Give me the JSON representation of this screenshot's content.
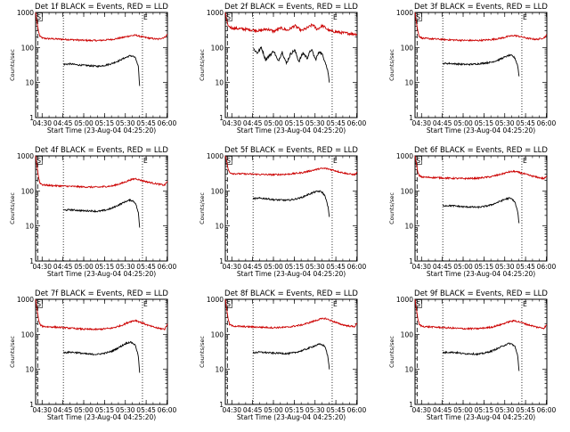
{
  "chart_data": [
    {
      "type": "line",
      "title": "Det 1f BLACK = Events, RED = LLD",
      "xlabel": "Start Time (23-Aug-04 04:25:20)",
      "ylabel": "Counts/sec",
      "x_tick_labels": [
        "04:30",
        "04:45",
        "05:00",
        "05:15",
        "05:30",
        "05:45",
        "06:00"
      ],
      "y_tick_labels": [
        "1",
        "10",
        "100",
        "1000"
      ],
      "y_scale": "log",
      "ylim": [
        1,
        1000
      ],
      "xlim_minutes": [
        0,
        95
      ],
      "dotted_markers_min": [
        20,
        77
      ],
      "marker_labels": [
        "S",
        "E"
      ],
      "series": [
        {
          "name": "RED = LLD",
          "color": "#cc0000",
          "level": "mid",
          "values_x_min": [
            0,
            1,
            2,
            3,
            5,
            8,
            15,
            25,
            35,
            45,
            55,
            62,
            68,
            72,
            77,
            82,
            88,
            93,
            95
          ],
          "values_y": [
            1000,
            520,
            300,
            210,
            185,
            180,
            175,
            168,
            160,
            158,
            170,
            190,
            215,
            225,
            200,
            185,
            172,
            195,
            240
          ]
        },
        {
          "name": "BLACK = Events",
          "color": "#000000",
          "level": "mid",
          "values_x_min": [
            20,
            25,
            30,
            35,
            40,
            45,
            50,
            55,
            60,
            65,
            68,
            70,
            72,
            74,
            75
          ],
          "values_y": [
            33,
            34,
            32,
            31,
            30,
            29,
            31,
            35,
            42,
            52,
            58,
            57,
            50,
            28,
            8
          ]
        }
      ]
    },
    {
      "type": "line",
      "title": "Det 2f BLACK = Events, RED = LLD",
      "xlabel": "Start Time (23-Aug-04 04:25:20)",
      "ylabel": "Counts/sec",
      "x_tick_labels": [
        "04:30",
        "04:45",
        "05:00",
        "05:15",
        "05:30",
        "05:45",
        "06:00"
      ],
      "y_tick_labels": [
        "1",
        "10",
        "100",
        "1000"
      ],
      "y_scale": "log",
      "ylim": [
        1,
        1000
      ],
      "xlim_minutes": [
        0,
        95
      ],
      "dotted_markers_min": [
        20,
        77
      ],
      "marker_labels": [
        "S",
        "E"
      ],
      "series": [
        {
          "name": "RED = LLD",
          "color": "#cc0000",
          "level": "noisy-high",
          "values_x_min": [
            0,
            1,
            2,
            3,
            5,
            8,
            15,
            25,
            30,
            35,
            40,
            45,
            50,
            55,
            60,
            63,
            66,
            70,
            75,
            80,
            85,
            90,
            95
          ],
          "values_y": [
            1000,
            600,
            420,
            390,
            360,
            350,
            330,
            300,
            340,
            290,
            360,
            310,
            420,
            300,
            380,
            450,
            330,
            420,
            300,
            280,
            260,
            250,
            240
          ]
        },
        {
          "name": "BLACK = Events",
          "color": "#000000",
          "level": "noisy",
          "values_x_min": [
            20,
            23,
            26,
            29,
            32,
            35,
            38,
            41,
            44,
            47,
            50,
            53,
            56,
            59,
            62,
            65,
            68,
            70,
            72,
            74,
            75
          ],
          "values_y": [
            95,
            70,
            100,
            45,
            60,
            80,
            40,
            75,
            35,
            65,
            85,
            40,
            70,
            50,
            90,
            45,
            80,
            60,
            40,
            20,
            10
          ]
        }
      ]
    },
    {
      "type": "line",
      "title": "Det 3f BLACK = Events, RED = LLD",
      "xlabel": "Start Time (23-Aug-04 04:25:20)",
      "ylabel": "Counts/sec",
      "x_tick_labels": [
        "04:30",
        "04:45",
        "05:00",
        "05:15",
        "05:30",
        "05:45",
        "06:00"
      ],
      "y_tick_labels": [
        "1",
        "10",
        "100",
        "1000"
      ],
      "y_scale": "log",
      "ylim": [
        1,
        1000
      ],
      "xlim_minutes": [
        0,
        95
      ],
      "dotted_markers_min": [
        20,
        77
      ],
      "marker_labels": [
        "S",
        "E"
      ],
      "series": [
        {
          "name": "RED = LLD",
          "color": "#cc0000",
          "level": "mid",
          "values_x_min": [
            0,
            1,
            2,
            3,
            5,
            8,
            15,
            25,
            35,
            45,
            55,
            62,
            68,
            72,
            77,
            82,
            88,
            93,
            95
          ],
          "values_y": [
            1000,
            520,
            300,
            210,
            185,
            180,
            175,
            165,
            160,
            158,
            168,
            185,
            210,
            220,
            200,
            180,
            170,
            190,
            230
          ]
        },
        {
          "name": "BLACK = Events",
          "color": "#000000",
          "level": "mid",
          "values_x_min": [
            20,
            25,
            30,
            35,
            40,
            45,
            50,
            55,
            60,
            65,
            68,
            70,
            72,
            74,
            75
          ],
          "values_y": [
            35,
            35,
            34,
            33,
            33,
            34,
            36,
            38,
            44,
            54,
            60,
            58,
            50,
            30,
            15
          ]
        }
      ]
    },
    {
      "type": "line",
      "title": "Det 4f BLACK = Events, RED = LLD",
      "xlabel": "Start Time (23-Aug-04 04:25:20)",
      "ylabel": "Counts/sec",
      "x_tick_labels": [
        "04:30",
        "04:45",
        "05:00",
        "05:15",
        "05:30",
        "05:45",
        "06:00"
      ],
      "y_tick_labels": [
        "1",
        "10",
        "100",
        "1000"
      ],
      "y_scale": "log",
      "ylim": [
        1,
        1000
      ],
      "xlim_minutes": [
        0,
        95
      ],
      "dotted_markers_min": [
        20,
        77
      ],
      "marker_labels": [
        "S",
        "E"
      ],
      "series": [
        {
          "name": "RED = LLD",
          "color": "#cc0000",
          "level": "mid",
          "values_x_min": [
            0,
            1,
            2,
            3,
            5,
            8,
            15,
            25,
            35,
            45,
            55,
            62,
            68,
            72,
            77,
            82,
            88,
            93,
            95
          ],
          "values_y": [
            1000,
            500,
            260,
            170,
            150,
            145,
            140,
            135,
            130,
            128,
            138,
            165,
            205,
            225,
            195,
            175,
            158,
            145,
            190
          ]
        },
        {
          "name": "BLACK = Events",
          "color": "#000000",
          "level": "mid",
          "values_x_min": [
            20,
            25,
            30,
            35,
            40,
            45,
            50,
            55,
            60,
            65,
            68,
            70,
            72,
            74,
            75
          ],
          "values_y": [
            28,
            29,
            28,
            27,
            27,
            26,
            28,
            32,
            40,
            50,
            55,
            52,
            45,
            24,
            9
          ]
        }
      ]
    },
    {
      "type": "line",
      "title": "Det 5f BLACK = Events, RED = LLD",
      "xlabel": "Start Time (23-Aug-04 04:25:20)",
      "ylabel": "Counts/sec",
      "x_tick_labels": [
        "04:30",
        "04:45",
        "05:00",
        "05:15",
        "05:30",
        "05:45",
        "06:00"
      ],
      "y_tick_labels": [
        "1",
        "10",
        "100",
        "1000"
      ],
      "y_scale": "log",
      "ylim": [
        1,
        1000
      ],
      "xlim_minutes": [
        0,
        95
      ],
      "dotted_markers_min": [
        20,
        77
      ],
      "marker_labels": [
        "S",
        "E"
      ],
      "series": [
        {
          "name": "RED = LLD",
          "color": "#cc0000",
          "level": "high",
          "values_x_min": [
            0,
            1,
            2,
            3,
            5,
            8,
            15,
            25,
            35,
            45,
            55,
            62,
            68,
            72,
            77,
            82,
            88,
            93,
            95
          ],
          "values_y": [
            1000,
            700,
            420,
            340,
            315,
            310,
            305,
            295,
            290,
            300,
            330,
            380,
            430,
            440,
            400,
            350,
            310,
            290,
            330
          ]
        },
        {
          "name": "BLACK = Events",
          "color": "#000000",
          "level": "mid",
          "values_x_min": [
            20,
            25,
            30,
            35,
            40,
            45,
            50,
            55,
            60,
            65,
            68,
            70,
            72,
            74,
            75
          ],
          "values_y": [
            60,
            62,
            60,
            56,
            55,
            54,
            58,
            65,
            80,
            95,
            98,
            90,
            70,
            35,
            18
          ]
        }
      ]
    },
    {
      "type": "line",
      "title": "Det 6f BLACK = Events, RED = LLD",
      "xlabel": "Start Time (23-Aug-04 04:25:20)",
      "ylabel": "Counts/sec",
      "x_tick_labels": [
        "04:30",
        "04:45",
        "05:00",
        "05:15",
        "05:30",
        "05:45",
        "06:00"
      ],
      "y_tick_labels": [
        "1",
        "10",
        "100",
        "1000"
      ],
      "y_scale": "log",
      "ylim": [
        1,
        1000
      ],
      "xlim_minutes": [
        0,
        95
      ],
      "dotted_markers_min": [
        20,
        77
      ],
      "marker_labels": [
        "S",
        "E"
      ],
      "series": [
        {
          "name": "RED = LLD",
          "color": "#cc0000",
          "level": "high",
          "values_x_min": [
            0,
            1,
            2,
            3,
            5,
            8,
            15,
            25,
            35,
            45,
            55,
            62,
            68,
            72,
            77,
            82,
            88,
            93,
            95
          ],
          "values_y": [
            1000,
            600,
            340,
            270,
            250,
            245,
            240,
            230,
            225,
            230,
            255,
            300,
            350,
            360,
            320,
            280,
            245,
            225,
            260
          ]
        },
        {
          "name": "BLACK = Events",
          "color": "#000000",
          "level": "mid",
          "values_x_min": [
            20,
            25,
            30,
            35,
            40,
            45,
            50,
            55,
            60,
            65,
            68,
            70,
            72,
            74,
            75
          ],
          "values_y": [
            38,
            38,
            37,
            35,
            35,
            34,
            36,
            40,
            48,
            58,
            62,
            58,
            48,
            25,
            12
          ]
        }
      ]
    },
    {
      "type": "line",
      "title": "Det 7f BLACK = Events, RED = LLD",
      "xlabel": "Start Time (23-Aug-04 04:25:20)",
      "ylabel": "Counts/sec",
      "x_tick_labels": [
        "04:30",
        "04:45",
        "05:00",
        "05:15",
        "05:30",
        "05:45",
        "06:00"
      ],
      "y_tick_labels": [
        "1",
        "10",
        "100",
        "1000"
      ],
      "y_scale": "log",
      "ylim": [
        1,
        1000
      ],
      "xlim_minutes": [
        0,
        95
      ],
      "dotted_markers_min": [
        20,
        77
      ],
      "marker_labels": [
        "S",
        "E"
      ],
      "series": [
        {
          "name": "RED = LLD",
          "color": "#cc0000",
          "level": "mid",
          "values_x_min": [
            0,
            1,
            2,
            3,
            5,
            8,
            15,
            25,
            35,
            45,
            55,
            62,
            68,
            72,
            77,
            82,
            88,
            93,
            95
          ],
          "values_y": [
            1000,
            520,
            280,
            190,
            170,
            165,
            160,
            150,
            140,
            138,
            150,
            180,
            230,
            250,
            210,
            175,
            150,
            140,
            200
          ]
        },
        {
          "name": "BLACK = Events",
          "color": "#000000",
          "level": "mid",
          "values_x_min": [
            20,
            25,
            30,
            35,
            40,
            45,
            50,
            55,
            60,
            65,
            68,
            70,
            72,
            74,
            75
          ],
          "values_y": [
            30,
            31,
            30,
            28,
            27,
            27,
            29,
            33,
            42,
            55,
            60,
            56,
            48,
            24,
            8
          ]
        }
      ]
    },
    {
      "type": "line",
      "title": "Det 8f BLACK = Events, RED = LLD",
      "xlabel": "Start Time (23-Aug-04 04:25:20)",
      "ylabel": "Counts/sec",
      "x_tick_labels": [
        "04:30",
        "04:45",
        "05:00",
        "05:15",
        "05:30",
        "05:45",
        "06:00"
      ],
      "y_tick_labels": [
        "1",
        "10",
        "100",
        "1000"
      ],
      "y_scale": "log",
      "ylim": [
        1,
        1000
      ],
      "xlim_minutes": [
        0,
        95
      ],
      "dotted_markers_min": [
        20,
        77
      ],
      "marker_labels": [
        "S",
        "E"
      ],
      "series": [
        {
          "name": "RED = LLD",
          "color": "#cc0000",
          "level": "mid",
          "values_x_min": [
            0,
            1,
            2,
            3,
            5,
            8,
            15,
            25,
            35,
            45,
            55,
            62,
            68,
            72,
            77,
            82,
            88,
            93,
            95
          ],
          "values_y": [
            1000,
            520,
            280,
            190,
            175,
            170,
            165,
            160,
            155,
            160,
            185,
            225,
            270,
            285,
            240,
            200,
            175,
            165,
            210
          ]
        },
        {
          "name": "BLACK = Events",
          "color": "#000000",
          "level": "mid",
          "values_x_min": [
            20,
            25,
            30,
            35,
            40,
            45,
            50,
            55,
            60,
            65,
            68,
            70,
            72,
            74,
            75
          ],
          "values_y": [
            30,
            31,
            30,
            29,
            29,
            28,
            30,
            34,
            40,
            48,
            52,
            50,
            44,
            22,
            10
          ]
        }
      ]
    },
    {
      "type": "line",
      "title": "Det 9f BLACK = Events, RED = LLD",
      "xlabel": "Start Time (23-Aug-04 04:25:20)",
      "ylabel": "Counts/sec",
      "x_tick_labels": [
        "04:30",
        "04:45",
        "05:00",
        "05:15",
        "05:30",
        "05:45",
        "06:00"
      ],
      "y_tick_labels": [
        "1",
        "10",
        "100",
        "1000"
      ],
      "y_scale": "log",
      "ylim": [
        1,
        1000
      ],
      "xlim_minutes": [
        0,
        95
      ],
      "dotted_markers_min": [
        20,
        77
      ],
      "marker_labels": [
        "S",
        "E"
      ],
      "series": [
        {
          "name": "RED = LLD",
          "color": "#cc0000",
          "level": "mid",
          "values_x_min": [
            0,
            1,
            2,
            3,
            5,
            8,
            15,
            25,
            35,
            45,
            55,
            62,
            68,
            72,
            77,
            82,
            88,
            93,
            95
          ],
          "values_y": [
            1000,
            520,
            280,
            190,
            170,
            165,
            160,
            152,
            145,
            145,
            160,
            190,
            230,
            245,
            215,
            185,
            160,
            150,
            190
          ]
        },
        {
          "name": "BLACK = Events",
          "color": "#000000",
          "level": "mid",
          "values_x_min": [
            20,
            25,
            30,
            35,
            40,
            45,
            50,
            55,
            60,
            65,
            68,
            70,
            72,
            74,
            75
          ],
          "values_y": [
            30,
            31,
            30,
            28,
            28,
            27,
            29,
            33,
            40,
            50,
            55,
            52,
            45,
            24,
            9
          ]
        }
      ]
    }
  ]
}
